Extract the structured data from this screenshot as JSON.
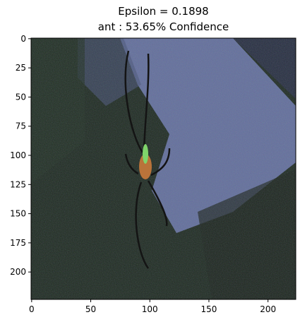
{
  "chart_data": {
    "type": "heatmap",
    "title_line1": "Epsilon = 0.1898",
    "title_line2": "ant : 53.65% Confidence",
    "xlabel": "",
    "ylabel": "",
    "xlim": [
      -0.5,
      223.5
    ],
    "ylim": [
      223.5,
      -0.5
    ],
    "xticks": [
      0,
      50,
      100,
      150,
      200
    ],
    "yticks": [
      0,
      25,
      50,
      75,
      100,
      125,
      150,
      175,
      200
    ],
    "image_description_colors": {
      "background_dark": "#1e2a1e",
      "noise_green": "#3f5a3a",
      "light_band": "#9aa6e6",
      "spider_body": "#c07a3a"
    }
  }
}
